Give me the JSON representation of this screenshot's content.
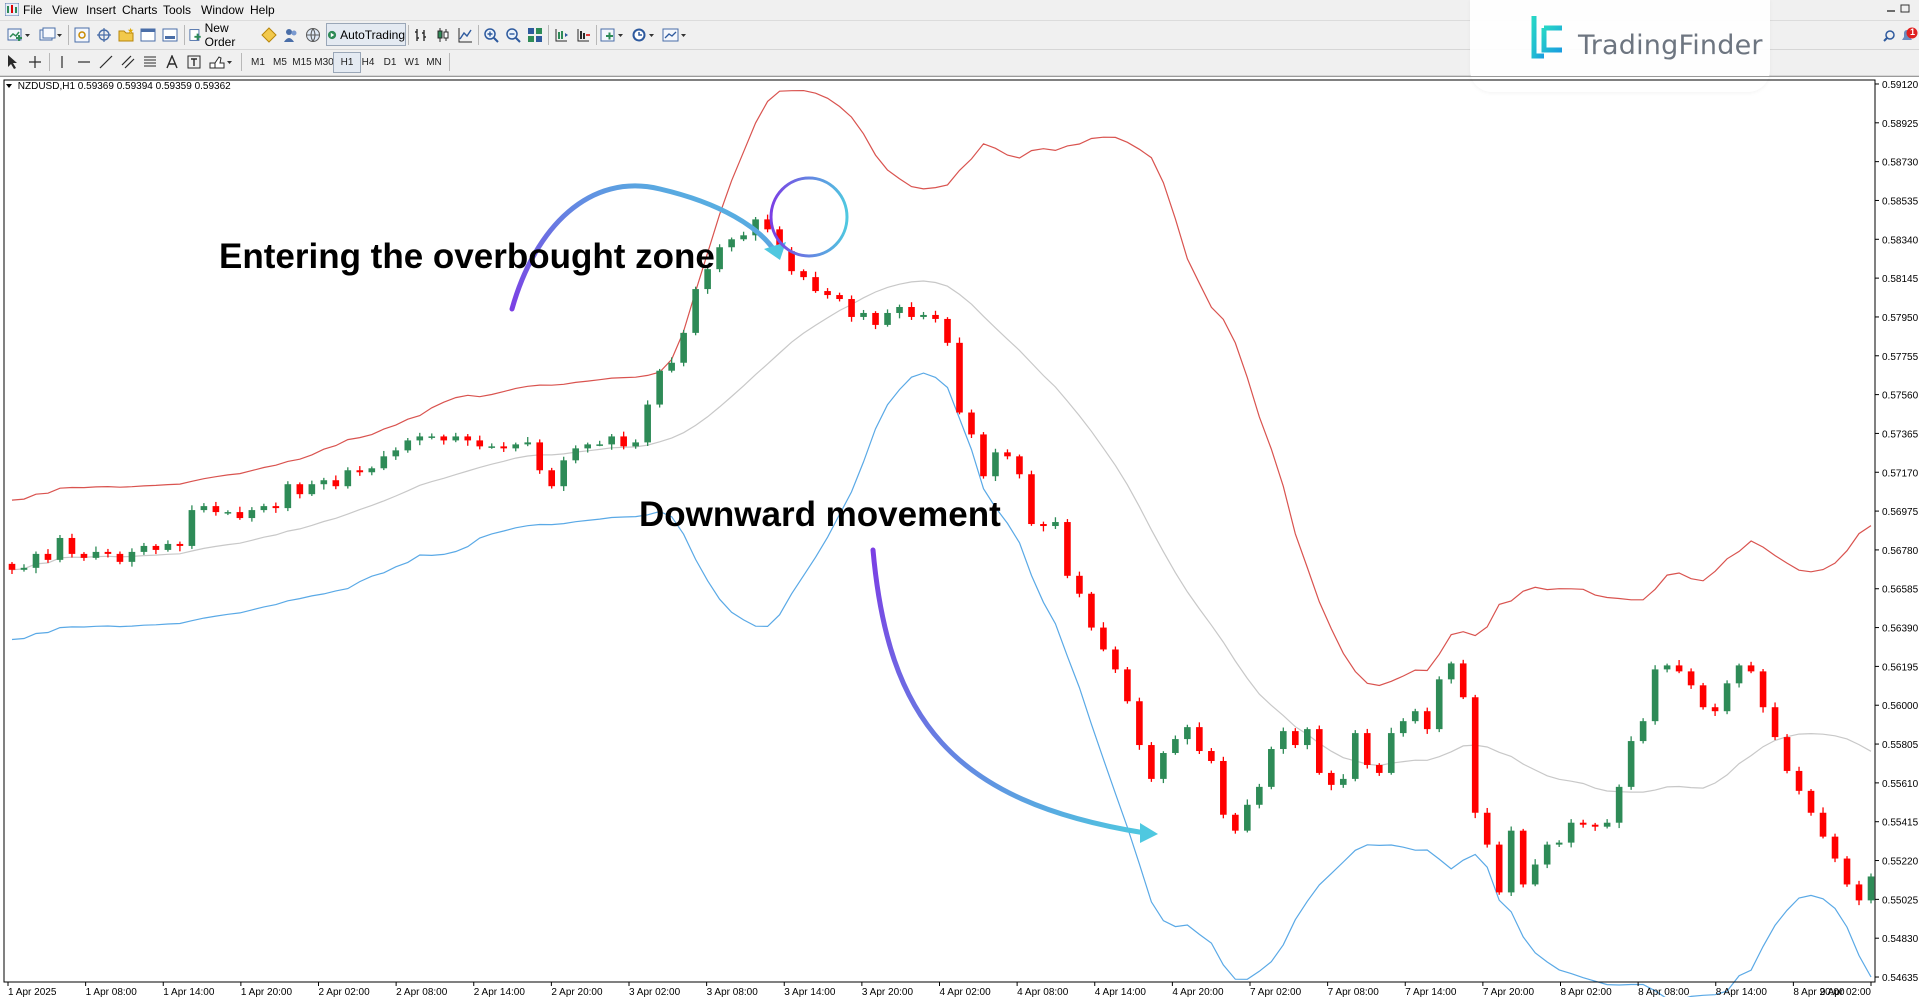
{
  "menu": {
    "items": [
      "File",
      "View",
      "Insert",
      "Charts",
      "Tools",
      "Window",
      "Help"
    ]
  },
  "toolbar": {
    "new_order_label": "New Order",
    "autotrading_label": "AutoTrading",
    "timeframes": [
      "M1",
      "M5",
      "M15",
      "M30",
      "H1",
      "H4",
      "D1",
      "W1",
      "MN"
    ],
    "notification_count": "1"
  },
  "logo": {
    "text": "TradingFinder"
  },
  "chart": {
    "symbol_info": "NZDUSD,H1  0.59369 0.59394 0.59359 0.59362"
  },
  "annotations": {
    "overbought": "Entering the overbought zone",
    "downward": "Downward movement"
  },
  "colors": {
    "bull": "#2e8b57",
    "bear": "#ff0000",
    "upper_band": "#d9534f",
    "middle_band": "#c8c8c8",
    "lower_band": "#5aa9e6",
    "arrow_start": "#7b3fe4",
    "arrow_end": "#4fc8e0"
  },
  "chart_data": {
    "type": "candlestick",
    "symbol": "NZDUSD",
    "timeframe": "H1",
    "price_ticks": [
      "0.59120",
      "0.58925",
      "0.58730",
      "0.58535",
      "0.58340",
      "0.58145",
      "0.57950",
      "0.57755",
      "0.57560",
      "0.57365",
      "0.57170",
      "0.56975",
      "0.56780",
      "0.56585",
      "0.56390",
      "0.56195",
      "0.56000",
      "0.55805",
      "0.55610",
      "0.55415",
      "0.55220",
      "0.55025",
      "0.54830",
      "0.54635"
    ],
    "time_ticks": [
      "1 Apr 2025",
      "1 Apr 08:00",
      "1 Apr 14:00",
      "1 Apr 20:00",
      "2 Apr 02:00",
      "2 Apr 08:00",
      "2 Apr 14:00",
      "2 Apr 20:00",
      "3 Apr 02:00",
      "3 Apr 08:00",
      "3 Apr 14:00",
      "3 Apr 20:00",
      "4 Apr 02:00",
      "4 Apr 08:00",
      "4 Apr 14:00",
      "4 Apr 20:00",
      "7 Apr 02:00",
      "7 Apr 08:00",
      "7 Apr 14:00",
      "7 Apr 20:00",
      "8 Apr 02:00",
      "8 Apr 08:00",
      "8 Apr 14:00",
      "8 Apr 20:00",
      "9 Apr 02:00"
    ],
    "ylim": [
      0.5461,
      0.5914
    ],
    "closes": [
      0.5668,
      0.5669,
      0.5676,
      0.5673,
      0.5684,
      0.5676,
      0.5674,
      0.5677,
      0.5676,
      0.5672,
      0.5677,
      0.568,
      0.5678,
      0.5681,
      0.568,
      0.5698,
      0.57,
      0.5697,
      0.5697,
      0.5694,
      0.5698,
      0.57,
      0.5699,
      0.5711,
      0.5706,
      0.5711,
      0.5713,
      0.571,
      0.5718,
      0.5717,
      0.5719,
      0.5725,
      0.5728,
      0.5733,
      0.5735,
      0.5735,
      0.5733,
      0.5735,
      0.5733,
      0.573,
      0.573,
      0.5729,
      0.5731,
      0.5732,
      0.5718,
      0.571,
      0.5723,
      0.5729,
      0.5731,
      0.5731,
      0.5735,
      0.573,
      0.5732,
      0.5751,
      0.5768,
      0.5772,
      0.5787,
      0.5809,
      0.5819,
      0.583,
      0.5834,
      0.5836,
      0.5844,
      0.5839,
      0.5828,
      0.5818,
      0.5815,
      0.5808,
      0.5806,
      0.5804,
      0.5795,
      0.5797,
      0.5791,
      0.5797,
      0.58,
      0.5795,
      0.5796,
      0.5794,
      0.5782,
      0.5747,
      0.5736,
      0.5715,
      0.5727,
      0.5725,
      0.5716,
      0.5691,
      0.569,
      0.5692,
      0.5665,
      0.5656,
      0.5639,
      0.5628,
      0.5618,
      0.5602,
      0.558,
      0.5563,
      0.5576,
      0.5583,
      0.5589,
      0.5577,
      0.5572,
      0.5545,
      0.5537,
      0.555,
      0.5559,
      0.5578,
      0.5587,
      0.558,
      0.5588,
      0.5566,
      0.556,
      0.5563,
      0.5586,
      0.557,
      0.5566,
      0.5586,
      0.5592,
      0.5597,
      0.5588,
      0.5613,
      0.5621,
      0.5604,
      0.5546,
      0.553,
      0.5506,
      0.5537,
      0.551,
      0.552,
      0.553,
      0.5531,
      0.5541,
      0.554,
      0.5539,
      0.5541,
      0.5559,
      0.5582,
      0.5592,
      0.5618,
      0.562,
      0.5617,
      0.561,
      0.5599,
      0.5597,
      0.5611,
      0.562,
      0.5617,
      0.5599,
      0.5584,
      0.5567,
      0.5557,
      0.5546,
      0.5534,
      0.5523,
      0.551,
      0.5502,
      0.5514
    ]
  }
}
